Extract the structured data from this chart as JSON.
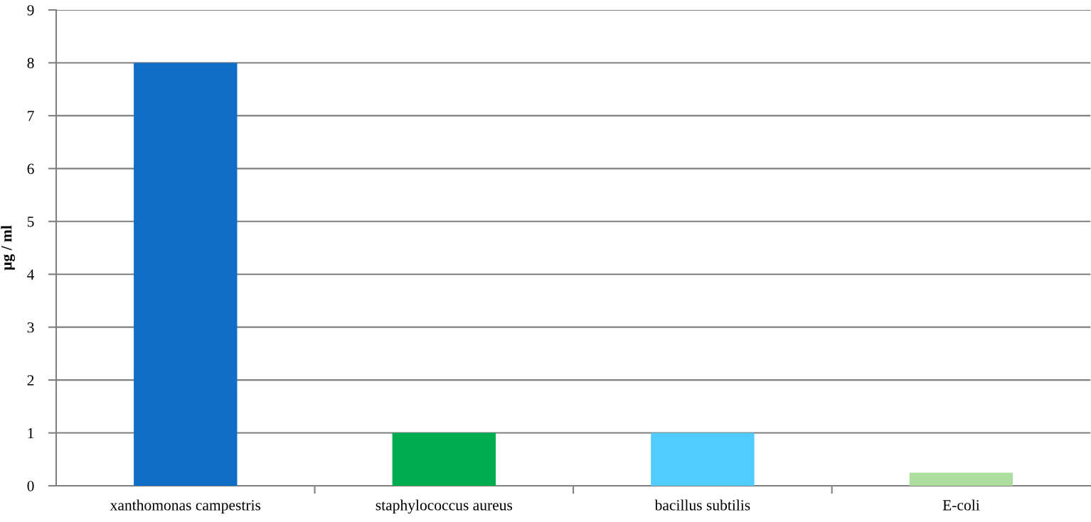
{
  "chart_data": {
    "type": "bar",
    "categories": [
      "xanthomonas campestris",
      "staphylococcus aureus",
      "bacillus subtilis",
      "E-coli"
    ],
    "values": [
      8,
      1,
      1,
      0.25
    ],
    "colors": [
      "#106ec6",
      "#00ad4e",
      "#50cdfe",
      "#aede9f"
    ],
    "ylabel": "µg / ml",
    "ylim": [
      0,
      9
    ],
    "yticks": [
      0,
      1,
      2,
      3,
      4,
      5,
      6,
      7,
      8,
      9
    ],
    "grid": "y"
  }
}
